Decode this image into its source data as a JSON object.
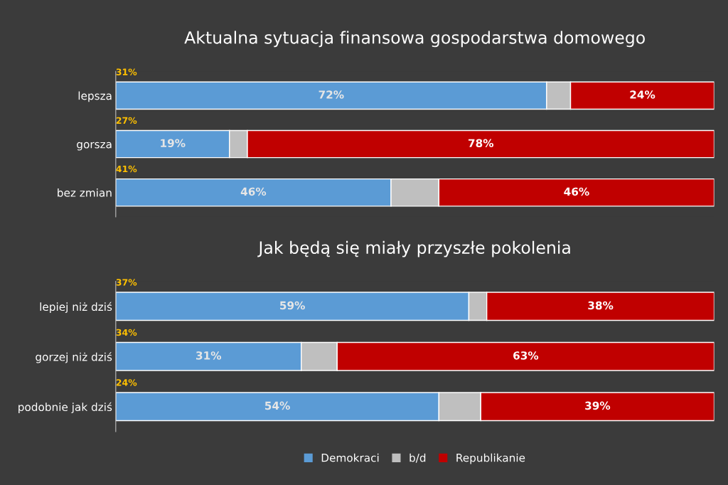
{
  "chart_data": [
    {
      "type": "bar",
      "orientation": "horizontal",
      "stacked": true,
      "title": "Aktualna sytuacja finansowa gospodarstwa domowego",
      "categories": [
        "lepsza",
        "gorsza",
        "bez zmian"
      ],
      "xlim": [
        0,
        100
      ],
      "tick_labels": "y",
      "grid": false,
      "series": [
        {
          "color": "#5b9bd5",
          "values": [
            72,
            19,
            46
          ],
          "value_labels": [
            "72%",
            "19%",
            "46%"
          ]
        },
        {
          "color": "#bfbfbf",
          "values": [
            4,
            3,
            8
          ],
          "value_labels": [
            null,
            null,
            null
          ]
        },
        {
          "color": "#c00000",
          "values": [
            24,
            78,
            46
          ],
          "value_labels": [
            "24%",
            "78%",
            "46%"
          ]
        }
      ],
      "annotations": [
        "31%",
        "27%",
        "41%"
      ]
    },
    {
      "type": "bar",
      "orientation": "horizontal",
      "stacked": true,
      "title": "Jak będą się miały przyszłe pokolenia",
      "categories": [
        "lepiej niż dziś",
        "gorzej niż dziś",
        "podobnie jak dziś"
      ],
      "xlim": [
        0,
        100
      ],
      "tick_labels": "y",
      "grid": false,
      "legend": "bottom",
      "series": [
        {
          "name": "Demokraci",
          "color": "#5b9bd5",
          "values": [
            59,
            31,
            54
          ],
          "value_labels": [
            "59%",
            "31%",
            "54%"
          ]
        },
        {
          "name": "b/d",
          "color": "#bfbfbf",
          "values": [
            3,
            6,
            7
          ],
          "value_labels": [
            null,
            null,
            null
          ]
        },
        {
          "name": "Republikanie",
          "color": "#c00000",
          "values": [
            38,
            63,
            39
          ],
          "value_labels": [
            "38%",
            "63%",
            "39%"
          ]
        }
      ],
      "annotations": [
        "37%",
        "34%",
        "24%"
      ]
    }
  ]
}
